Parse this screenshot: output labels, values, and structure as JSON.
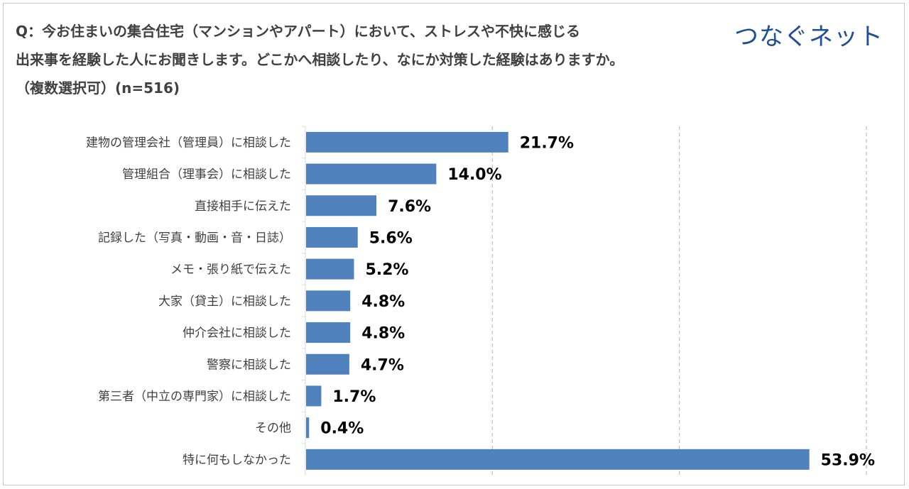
{
  "header": {
    "title_line1": "Q：今お住まいの集合住宅（マンションやアパート）において、ストレスや不快に感じる",
    "title_line2": "出来事を経験した人にお聞きします。どこかへ相談したり、なにか対策した経験はありますか。",
    "title_line3": "（複数選択可）(n=516)",
    "logo_text": "つなぐネット"
  },
  "chart_data": {
    "type": "bar",
    "orientation": "horizontal",
    "title": "Q：今お住まいの集合住宅（マンションやアパート）において、ストレスや不快に感じる出来事を経験した人にお聞きします。どこかへ相談したり、なにか対策した経験はありますか。（複数選択可）(n=516)",
    "categories": [
      "建物の管理会社（管理員）に相談した",
      "管理組合（理事会）に相談した",
      "直接相手に伝えた",
      "記録した（写真・動画・音・日誌）",
      "メモ・張り紙で伝えた",
      "大家（貸主）に相談した",
      "仲介会社に相談した",
      "警察に相談した",
      "第三者（中立の専門家）に相談した",
      "その他",
      "特に何もしなかった"
    ],
    "values": [
      21.7,
      14.0,
      7.6,
      5.6,
      5.2,
      4.8,
      4.8,
      4.7,
      1.7,
      0.4,
      53.9
    ],
    "value_labels": [
      "21.7%",
      "14.0%",
      "7.6%",
      "5.6%",
      "5.2%",
      "4.8%",
      "4.8%",
      "4.7%",
      "1.7%",
      "0.4%",
      "53.9%"
    ],
    "xlim": [
      0,
      60
    ],
    "gridlines_at": [
      20,
      40,
      60
    ],
    "grid": true,
    "bar_color": "#4f81bd",
    "xlabel": "",
    "ylabel": ""
  }
}
